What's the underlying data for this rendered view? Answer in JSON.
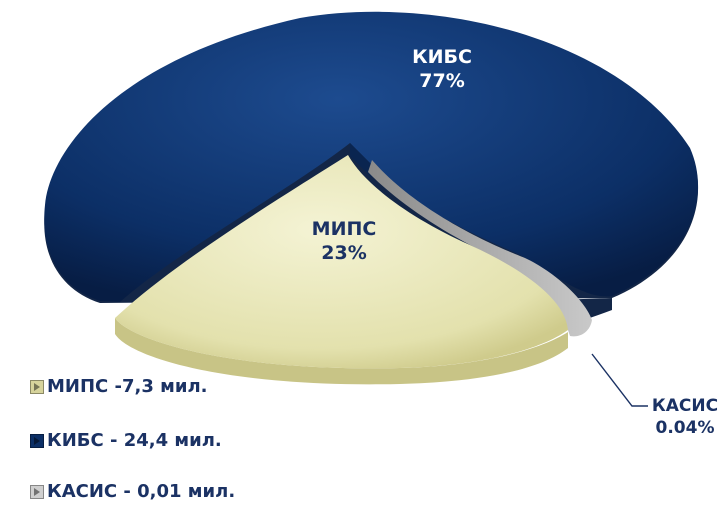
{
  "chart_data": {
    "type": "pie",
    "style": "3d-exploded",
    "slices": [
      {
        "name": "КИБС",
        "percent_label": "77%",
        "value": 24.4,
        "color": "#0c2f66"
      },
      {
        "name": "МИПС",
        "percent_label": "23%",
        "value": 7.3,
        "color": "#e8e6b6"
      },
      {
        "name": "КАСИС",
        "percent_label": "0.04%",
        "value": 0.01,
        "color": "#9a9a9a"
      }
    ],
    "legend": [
      {
        "text": "МИПС -7,3 мил.",
        "color": "#d6d39b"
      },
      {
        "text": "КИБС - 24,4 мил.",
        "color": "#0c2f66"
      },
      {
        "text": "КАСИС - 0,01 мил.",
        "color": "#cfcfcf"
      }
    ],
    "legend_position": "bottom-left"
  },
  "colors": {
    "label_dark": "#1b3264",
    "label_light": "#ffffff"
  }
}
